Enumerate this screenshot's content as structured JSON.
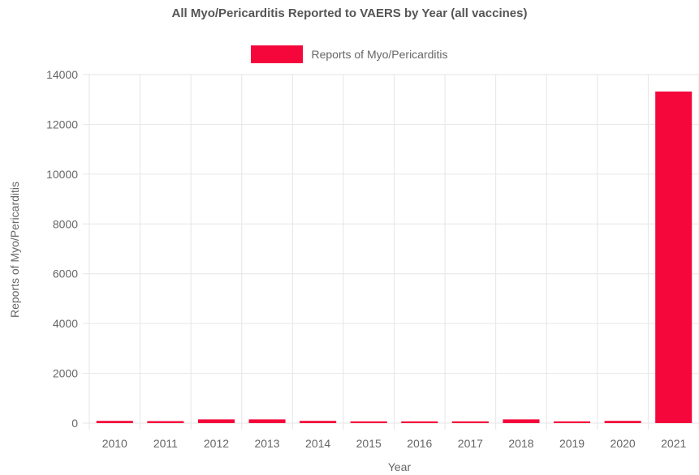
{
  "chart_data": {
    "type": "bar",
    "title": "All Myo/Pericarditis Reported to VAERS by Year (all vaccines)",
    "xlabel": "Year",
    "ylabel": "Reports of Myo/Pericarditis",
    "categories": [
      "2010",
      "2011",
      "2012",
      "2013",
      "2014",
      "2015",
      "2016",
      "2017",
      "2018",
      "2019",
      "2020",
      "2021"
    ],
    "series": [
      {
        "name": "Reports of Myo/Pericarditis",
        "values": [
          90,
          80,
          150,
          150,
          90,
          70,
          70,
          70,
          150,
          70,
          90,
          13320
        ],
        "color": "#f5063b"
      }
    ],
    "ylim": [
      0,
      14000
    ],
    "yticks": [
      0,
      2000,
      4000,
      6000,
      8000,
      10000,
      12000,
      14000
    ],
    "grid": true,
    "legend_position": "top"
  }
}
